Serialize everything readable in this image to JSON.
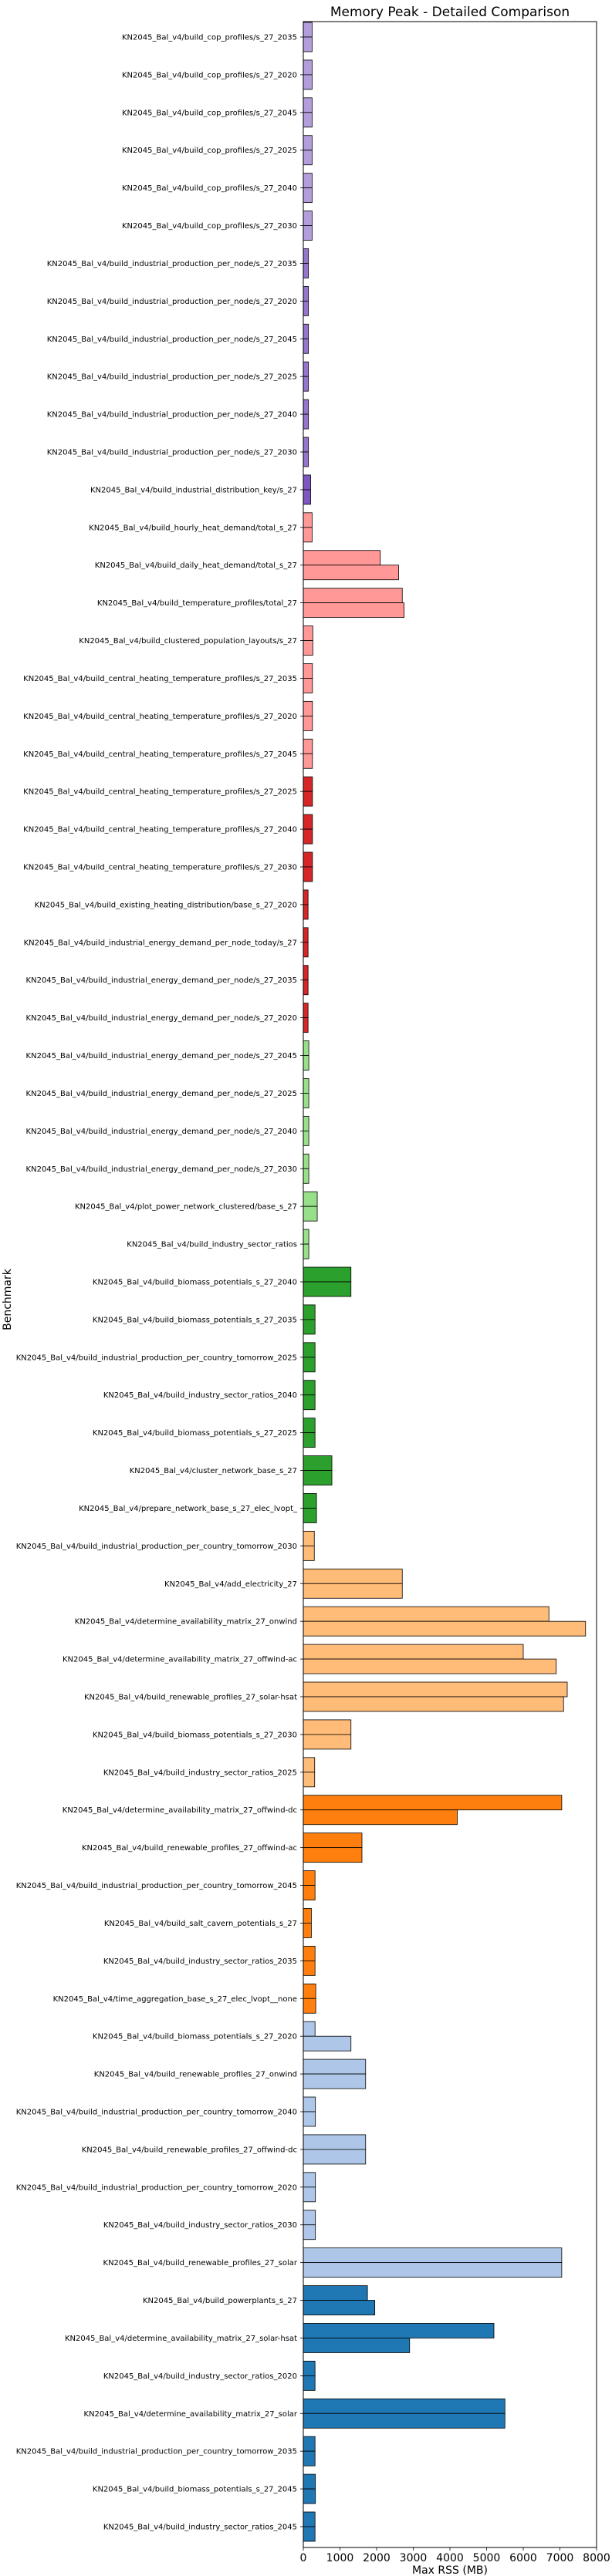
{
  "chart_data": {
    "type": "bar",
    "orientation": "horizontal",
    "title": "Memory Peak - Detailed Comparison",
    "xlabel": "Max RSS (MB)",
    "ylabel": "Benchmark",
    "xlim": [
      0,
      8000
    ],
    "xticks": [
      0,
      1000,
      2000,
      3000,
      4000,
      5000,
      6000,
      7000,
      8000
    ],
    "grid": false,
    "legend": "none",
    "categories": [
      "KN2045_Bal_v4/build_cop_profiles/s_27_2035",
      "KN2045_Bal_v4/build_cop_profiles/s_27_2020",
      "KN2045_Bal_v4/build_cop_profiles/s_27_2045",
      "KN2045_Bal_v4/build_cop_profiles/s_27_2025",
      "KN2045_Bal_v4/build_cop_profiles/s_27_2040",
      "KN2045_Bal_v4/build_cop_profiles/s_27_2030",
      "KN2045_Bal_v4/build_industrial_production_per_node/s_27_2035",
      "KN2045_Bal_v4/build_industrial_production_per_node/s_27_2020",
      "KN2045_Bal_v4/build_industrial_production_per_node/s_27_2045",
      "KN2045_Bal_v4/build_industrial_production_per_node/s_27_2025",
      "KN2045_Bal_v4/build_industrial_production_per_node/s_27_2040",
      "KN2045_Bal_v4/build_industrial_production_per_node/s_27_2030",
      "KN2045_Bal_v4/build_industrial_distribution_key/s_27",
      "KN2045_Bal_v4/build_hourly_heat_demand/total_s_27",
      "KN2045_Bal_v4/build_daily_heat_demand/total_s_27",
      "KN2045_Bal_v4/build_temperature_profiles/total_27",
      "KN2045_Bal_v4/build_clustered_population_layouts/s_27",
      "KN2045_Bal_v4/build_central_heating_temperature_profiles/s_27_2035",
      "KN2045_Bal_v4/build_central_heating_temperature_profiles/s_27_2020",
      "KN2045_Bal_v4/build_central_heating_temperature_profiles/s_27_2045",
      "KN2045_Bal_v4/build_central_heating_temperature_profiles/s_27_2025",
      "KN2045_Bal_v4/build_central_heating_temperature_profiles/s_27_2040",
      "KN2045_Bal_v4/build_central_heating_temperature_profiles/s_27_2030",
      "KN2045_Bal_v4/build_existing_heating_distribution/base_s_27_2020",
      "KN2045_Bal_v4/build_industrial_energy_demand_per_node_today/s_27",
      "KN2045_Bal_v4/build_industrial_energy_demand_per_node/s_27_2035",
      "KN2045_Bal_v4/build_industrial_energy_demand_per_node/s_27_2020",
      "KN2045_Bal_v4/build_industrial_energy_demand_per_node/s_27_2045",
      "KN2045_Bal_v4/build_industrial_energy_demand_per_node/s_27_2025",
      "KN2045_Bal_v4/build_industrial_energy_demand_per_node/s_27_2040",
      "KN2045_Bal_v4/build_industrial_energy_demand_per_node/s_27_2030",
      "KN2045_Bal_v4/plot_power_network_clustered/base_s_27",
      "KN2045_Bal_v4/build_industry_sector_ratios",
      "KN2045_Bal_v4/build_biomass_potentials_s_27_2040",
      "KN2045_Bal_v4/build_biomass_potentials_s_27_2035",
      "KN2045_Bal_v4/build_industrial_production_per_country_tomorrow_2025",
      "KN2045_Bal_v4/build_industry_sector_ratios_2040",
      "KN2045_Bal_v4/build_biomass_potentials_s_27_2025",
      "KN2045_Bal_v4/cluster_network_base_s_27",
      "KN2045_Bal_v4/prepare_network_base_s_27_elec_lvopt_",
      "KN2045_Bal_v4/build_industrial_production_per_country_tomorrow_2030",
      "KN2045_Bal_v4/add_electricity_27",
      "KN2045_Bal_v4/determine_availability_matrix_27_onwind",
      "KN2045_Bal_v4/determine_availability_matrix_27_offwind-ac",
      "KN2045_Bal_v4/build_renewable_profiles_27_solar-hsat",
      "KN2045_Bal_v4/build_biomass_potentials_s_27_2030",
      "KN2045_Bal_v4/build_industry_sector_ratios_2025",
      "KN2045_Bal_v4/determine_availability_matrix_27_offwind-dc",
      "KN2045_Bal_v4/build_renewable_profiles_27_offwind-ac",
      "KN2045_Bal_v4/build_industrial_production_per_country_tomorrow_2045",
      "KN2045_Bal_v4/build_salt_cavern_potentials_s_27",
      "KN2045_Bal_v4/build_industry_sector_ratios_2035",
      "KN2045_Bal_v4/time_aggregation_base_s_27_elec_lvopt__none",
      "KN2045_Bal_v4/build_biomass_potentials_s_27_2020",
      "KN2045_Bal_v4/build_renewable_profiles_27_onwind",
      "KN2045_Bal_v4/build_industrial_production_per_country_tomorrow_2040",
      "KN2045_Bal_v4/build_renewable_profiles_27_offwind-dc",
      "KN2045_Bal_v4/build_industrial_production_per_country_tomorrow_2020",
      "KN2045_Bal_v4/build_industry_sector_ratios_2030",
      "KN2045_Bal_v4/build_renewable_profiles_27_solar",
      "KN2045_Bal_v4/build_powerplants_s_27",
      "KN2045_Bal_v4/determine_availability_matrix_27_solar-hsat",
      "KN2045_Bal_v4/build_industry_sector_ratios_2020",
      "KN2045_Bal_v4/determine_availability_matrix_27_solar",
      "KN2045_Bal_v4/build_industrial_production_per_country_tomorrow_2035",
      "KN2045_Bal_v4/build_biomass_potentials_s_27_2045",
      "KN2045_Bal_v4/build_industry_sector_ratios_2045"
    ],
    "series": [
      {
        "values": [
          240,
          240,
          240,
          240,
          240,
          240,
          140,
          140,
          140,
          140,
          140,
          140,
          200,
          240,
          2100,
          2700,
          260,
          250,
          250,
          250,
          250,
          250,
          250,
          130,
          130,
          130,
          130,
          150,
          150,
          150,
          150,
          380,
          150,
          1300,
          320,
          320,
          320,
          320,
          780,
          360,
          300,
          2700,
          6700,
          6000,
          7200,
          1300,
          310,
          7050,
          1600,
          320,
          220,
          320,
          340,
          320,
          1700,
          330,
          1700,
          330,
          330,
          7050,
          1750,
          5200,
          320,
          5500,
          320,
          330,
          320
        ]
      },
      {
        "values": [
          240,
          240,
          240,
          240,
          240,
          240,
          140,
          140,
          140,
          140,
          140,
          140,
          200,
          240,
          2600,
          2750,
          260,
          250,
          250,
          250,
          250,
          250,
          250,
          130,
          130,
          130,
          130,
          150,
          150,
          150,
          150,
          380,
          150,
          1300,
          320,
          320,
          320,
          320,
          780,
          360,
          300,
          2700,
          7700,
          6900,
          7100,
          1300,
          310,
          4200,
          1600,
          320,
          220,
          320,
          340,
          1300,
          1700,
          330,
          1700,
          330,
          330,
          7050,
          1950,
          2900,
          320,
          5500,
          320,
          330,
          320
        ]
      }
    ],
    "colors": [
      "#b39ddb",
      "#9575cd",
      "#7e57c2",
      "#ff9896",
      "#d62728",
      "#98df8a",
      "#2ca02c",
      "#ffbb78",
      "#ff7f0e",
      "#aec7e8",
      "#1f77b4"
    ],
    "color_groups": [
      0,
      0,
      0,
      0,
      0,
      0,
      1,
      1,
      1,
      1,
      1,
      1,
      2,
      3,
      3,
      3,
      3,
      3,
      3,
      3,
      4,
      4,
      4,
      4,
      4,
      4,
      4,
      5,
      5,
      5,
      5,
      5,
      5,
      6,
      6,
      6,
      6,
      6,
      6,
      6,
      7,
      7,
      7,
      7,
      7,
      7,
      7,
      8,
      8,
      8,
      8,
      8,
      8,
      9,
      9,
      9,
      9,
      9,
      9,
      9,
      10,
      10,
      10,
      10,
      10,
      10,
      10
    ]
  }
}
